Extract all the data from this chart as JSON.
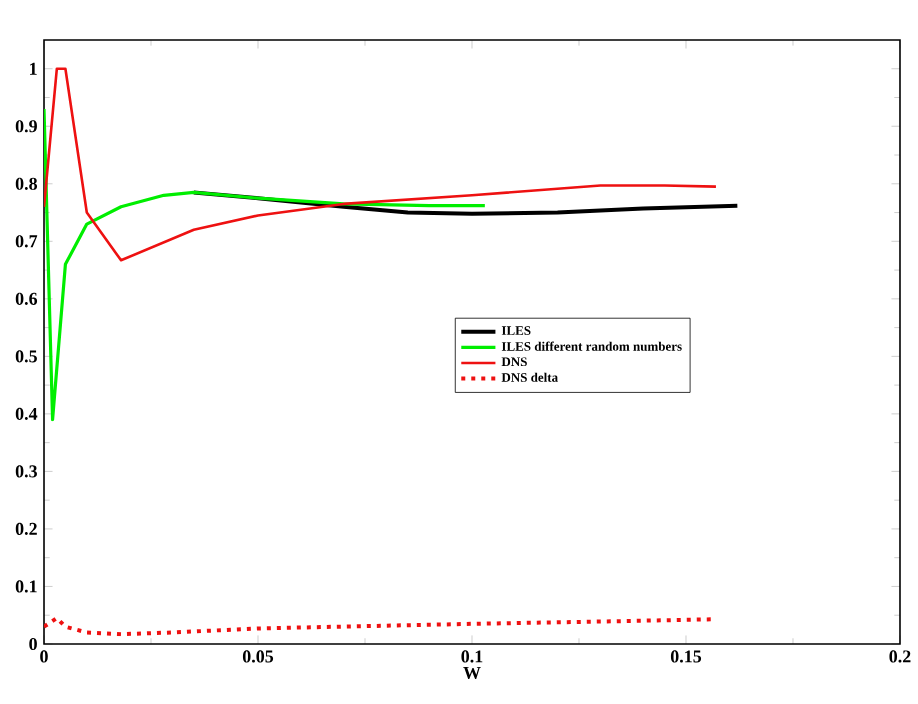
{
  "chart_data": {
    "type": "line",
    "xlabel": "W",
    "xlim": [
      0,
      0.2
    ],
    "ylim": [
      0,
      1.05
    ],
    "xticks": [
      0,
      0.05,
      0.1,
      0.15,
      0.2
    ],
    "yticks": [
      0,
      0.1,
      0.2,
      0.3,
      0.4,
      0.5,
      0.6,
      0.7,
      0.8,
      0.9,
      1
    ],
    "legend": "right",
    "grid": false,
    "marker": "none",
    "series": [
      {
        "name": "ILES",
        "color": "#000000",
        "line_style": "solid",
        "x": [
          0.035,
          0.05,
          0.07,
          0.085,
          0.1,
          0.12,
          0.14,
          0.162
        ],
        "values": [
          0.785,
          0.775,
          0.76,
          0.75,
          0.748,
          0.75,
          0.757,
          0.762
        ]
      },
      {
        "name": "ILES different random numbers",
        "color": "#00ee00",
        "line_style": "solid",
        "x": [
          0,
          0.002,
          0.005,
          0.01,
          0.018,
          0.028,
          0.035,
          0.05,
          0.07,
          0.09,
          0.103
        ],
        "values": [
          0.93,
          0.39,
          0.66,
          0.73,
          0.76,
          0.78,
          0.785,
          0.775,
          0.765,
          0.762,
          0.762
        ]
      },
      {
        "name": "DNS",
        "color": "#ee1111",
        "line_style": "solid",
        "x": [
          0,
          0.003,
          0.005,
          0.01,
          0.018,
          0.035,
          0.05,
          0.07,
          0.1,
          0.13,
          0.145,
          0.157
        ],
        "values": [
          0.76,
          1.0,
          1.0,
          0.75,
          0.667,
          0.72,
          0.745,
          0.765,
          0.78,
          0.797,
          0.797,
          0.795
        ]
      },
      {
        "name": "DNS   delta",
        "color": "#ee1111",
        "line_style": "dotted",
        "x": [
          0,
          0.003,
          0.005,
          0.01,
          0.018,
          0.03,
          0.05,
          0.075,
          0.1,
          0.13,
          0.157
        ],
        "values": [
          0.03,
          0.045,
          0.03,
          0.02,
          0.017,
          0.02,
          0.027,
          0.031,
          0.035,
          0.039,
          0.043
        ]
      }
    ]
  }
}
